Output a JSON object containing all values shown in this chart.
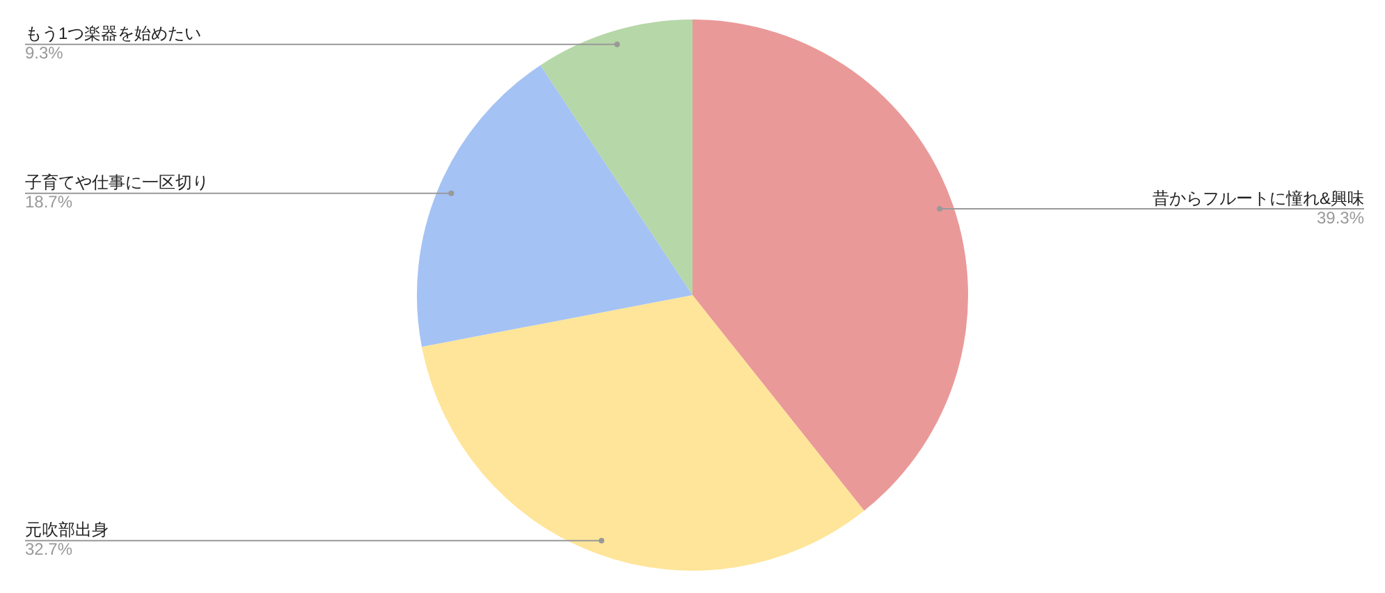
{
  "chart_data": {
    "type": "pie",
    "categories": [
      "昔からフルートに憧れ&興味",
      "元吹部出身",
      "子育てや仕事に一区切り",
      "もう1つ楽器を始めたい"
    ],
    "values": [
      39.3,
      32.7,
      18.7,
      9.3
    ],
    "colors": [
      "#ea9999",
      "#ffe599",
      "#a4c2f4",
      "#b6d7a8"
    ],
    "value_labels": [
      "39.3%",
      "32.7%",
      "18.7%",
      "9.3%"
    ],
    "legend": false
  }
}
